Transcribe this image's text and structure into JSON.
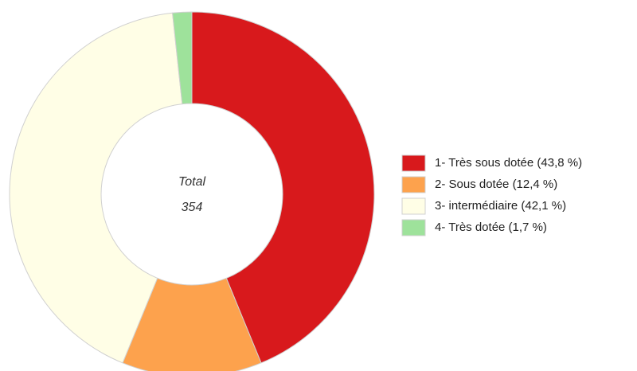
{
  "chart_data": {
    "type": "donut",
    "categories": [
      "1- Très sous dotée (43,8 %)",
      "2- Sous dotée (12,4 %)",
      "3- intermédiaire (42,1 %)",
      "4- Très dotée (1,7 %)"
    ],
    "values": [
      43.8,
      12.4,
      42.1,
      1.7
    ],
    "colors": [
      "#d8191c",
      "#fda24d",
      "#fffee6",
      "#9ee29b"
    ],
    "center_label": "Total",
    "total": 354
  }
}
